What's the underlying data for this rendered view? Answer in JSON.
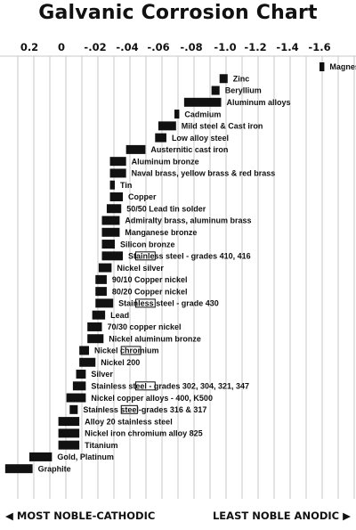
{
  "chart_data": {
    "type": "bar",
    "title": "Galvanic Corrosion Chart",
    "x_tick_labels": [
      "0.2",
      "0",
      "-.02",
      "-.04",
      "-.06",
      "-.08",
      "-1.0",
      "-1.2",
      "-1.4",
      "-1.6"
    ],
    "x_axis_units": "volts",
    "grid": true,
    "bar_style": "horizontal range bars; hollow box marks the active-state range",
    "series": [
      {
        "label": "Magnesium",
        "range": [
          -1.6,
          -1.63
        ]
      },
      {
        "label": "Zinc",
        "range": [
          -0.98,
          -1.03
        ]
      },
      {
        "label": "Beryllium",
        "range": [
          -0.93,
          -0.98
        ]
      },
      {
        "label": "Aluminum alloys",
        "range": [
          -0.76,
          -0.99
        ]
      },
      {
        "label": "Cadmium",
        "range": [
          -0.7,
          -0.73
        ]
      },
      {
        "label": "Mild steel & Cast iron",
        "range": [
          -0.6,
          -0.71
        ]
      },
      {
        "label": "Low alloy steel",
        "range": [
          -0.58,
          -0.65
        ]
      },
      {
        "label": "Austernitic cast iron",
        "range": [
          -0.4,
          -0.52
        ]
      },
      {
        "label": "Aluminum bronze",
        "range": [
          -0.3,
          -0.4
        ]
      },
      {
        "label": "Naval brass, yellow brass & red brass",
        "range": [
          -0.3,
          -0.4
        ]
      },
      {
        "label": "Tin",
        "range": [
          -0.3,
          -0.33
        ]
      },
      {
        "label": "Copper",
        "range": [
          -0.3,
          -0.38
        ]
      },
      {
        "label": "50/50 Lead tin solder",
        "range": [
          -0.28,
          -0.37
        ]
      },
      {
        "label": "Admiralty brass, aluminum brass",
        "range": [
          -0.25,
          -0.36
        ]
      },
      {
        "label": "Manganese bronze",
        "range": [
          -0.25,
          -0.36
        ]
      },
      {
        "label": "Silicon bronze",
        "range": [
          -0.25,
          -0.33
        ]
      },
      {
        "label": "Stainless steel - grades 410, 416",
        "range": [
          -0.25,
          -0.38
        ],
        "active_range": [
          -0.46,
          -0.58
        ]
      },
      {
        "label": "Nickel silver",
        "range": [
          -0.23,
          -0.31
        ]
      },
      {
        "label": "90/10 Copper nickel",
        "range": [
          -0.21,
          -0.28
        ]
      },
      {
        "label": "80/20 Copper nickel",
        "range": [
          -0.21,
          -0.28
        ]
      },
      {
        "label": "Stainless steel - grade 430",
        "range": [
          -0.21,
          -0.32
        ],
        "active_range": [
          -0.46,
          -0.58
        ]
      },
      {
        "label": "Lead",
        "range": [
          -0.19,
          -0.27
        ]
      },
      {
        "label": "70/30 copper nickel",
        "range": [
          -0.16,
          -0.25
        ]
      },
      {
        "label": "Nickel aluminum bronze",
        "range": [
          -0.16,
          -0.26
        ]
      },
      {
        "label": "Nickel chromium",
        "range": [
          -0.11,
          -0.17
        ],
        "active_range": [
          -0.37,
          -0.49
        ]
      },
      {
        "label": "Nickel 200",
        "range": [
          -0.11,
          -0.21
        ]
      },
      {
        "label": "Silver",
        "range": [
          -0.09,
          -0.15
        ]
      },
      {
        "label": "Stainless steel - grades 302, 304, 321, 347",
        "range": [
          -0.07,
          -0.15
        ],
        "active_range": [
          -0.46,
          -0.58
        ]
      },
      {
        "label": "Nickel copper alloys - 400, K500",
        "range": [
          -0.03,
          -0.15
        ]
      },
      {
        "label": "Stainless steel-grades  316 & 317",
        "range": [
          -0.05,
          -0.1
        ],
        "active_range": [
          -0.37,
          -0.47
        ]
      },
      {
        "label": "Alloy 20 stainless steel",
        "range": [
          0.02,
          -0.11
        ]
      },
      {
        "label": "Nickel iron chromium alloy 825",
        "range": [
          0.02,
          -0.11
        ]
      },
      {
        "label": "Titanium",
        "range": [
          0.02,
          -0.11
        ]
      },
      {
        "label": "Gold, Platinum",
        "range": [
          0.2,
          0.06
        ]
      },
      {
        "label": "Graphite",
        "range": [
          0.35,
          0.18
        ]
      }
    ]
  },
  "footer": {
    "left_arrow": "◀",
    "left_text": "MOST NOBLE-CATHODIC",
    "right_text": "LEAST NOBLE ANODIC",
    "right_arrow": "▶"
  }
}
